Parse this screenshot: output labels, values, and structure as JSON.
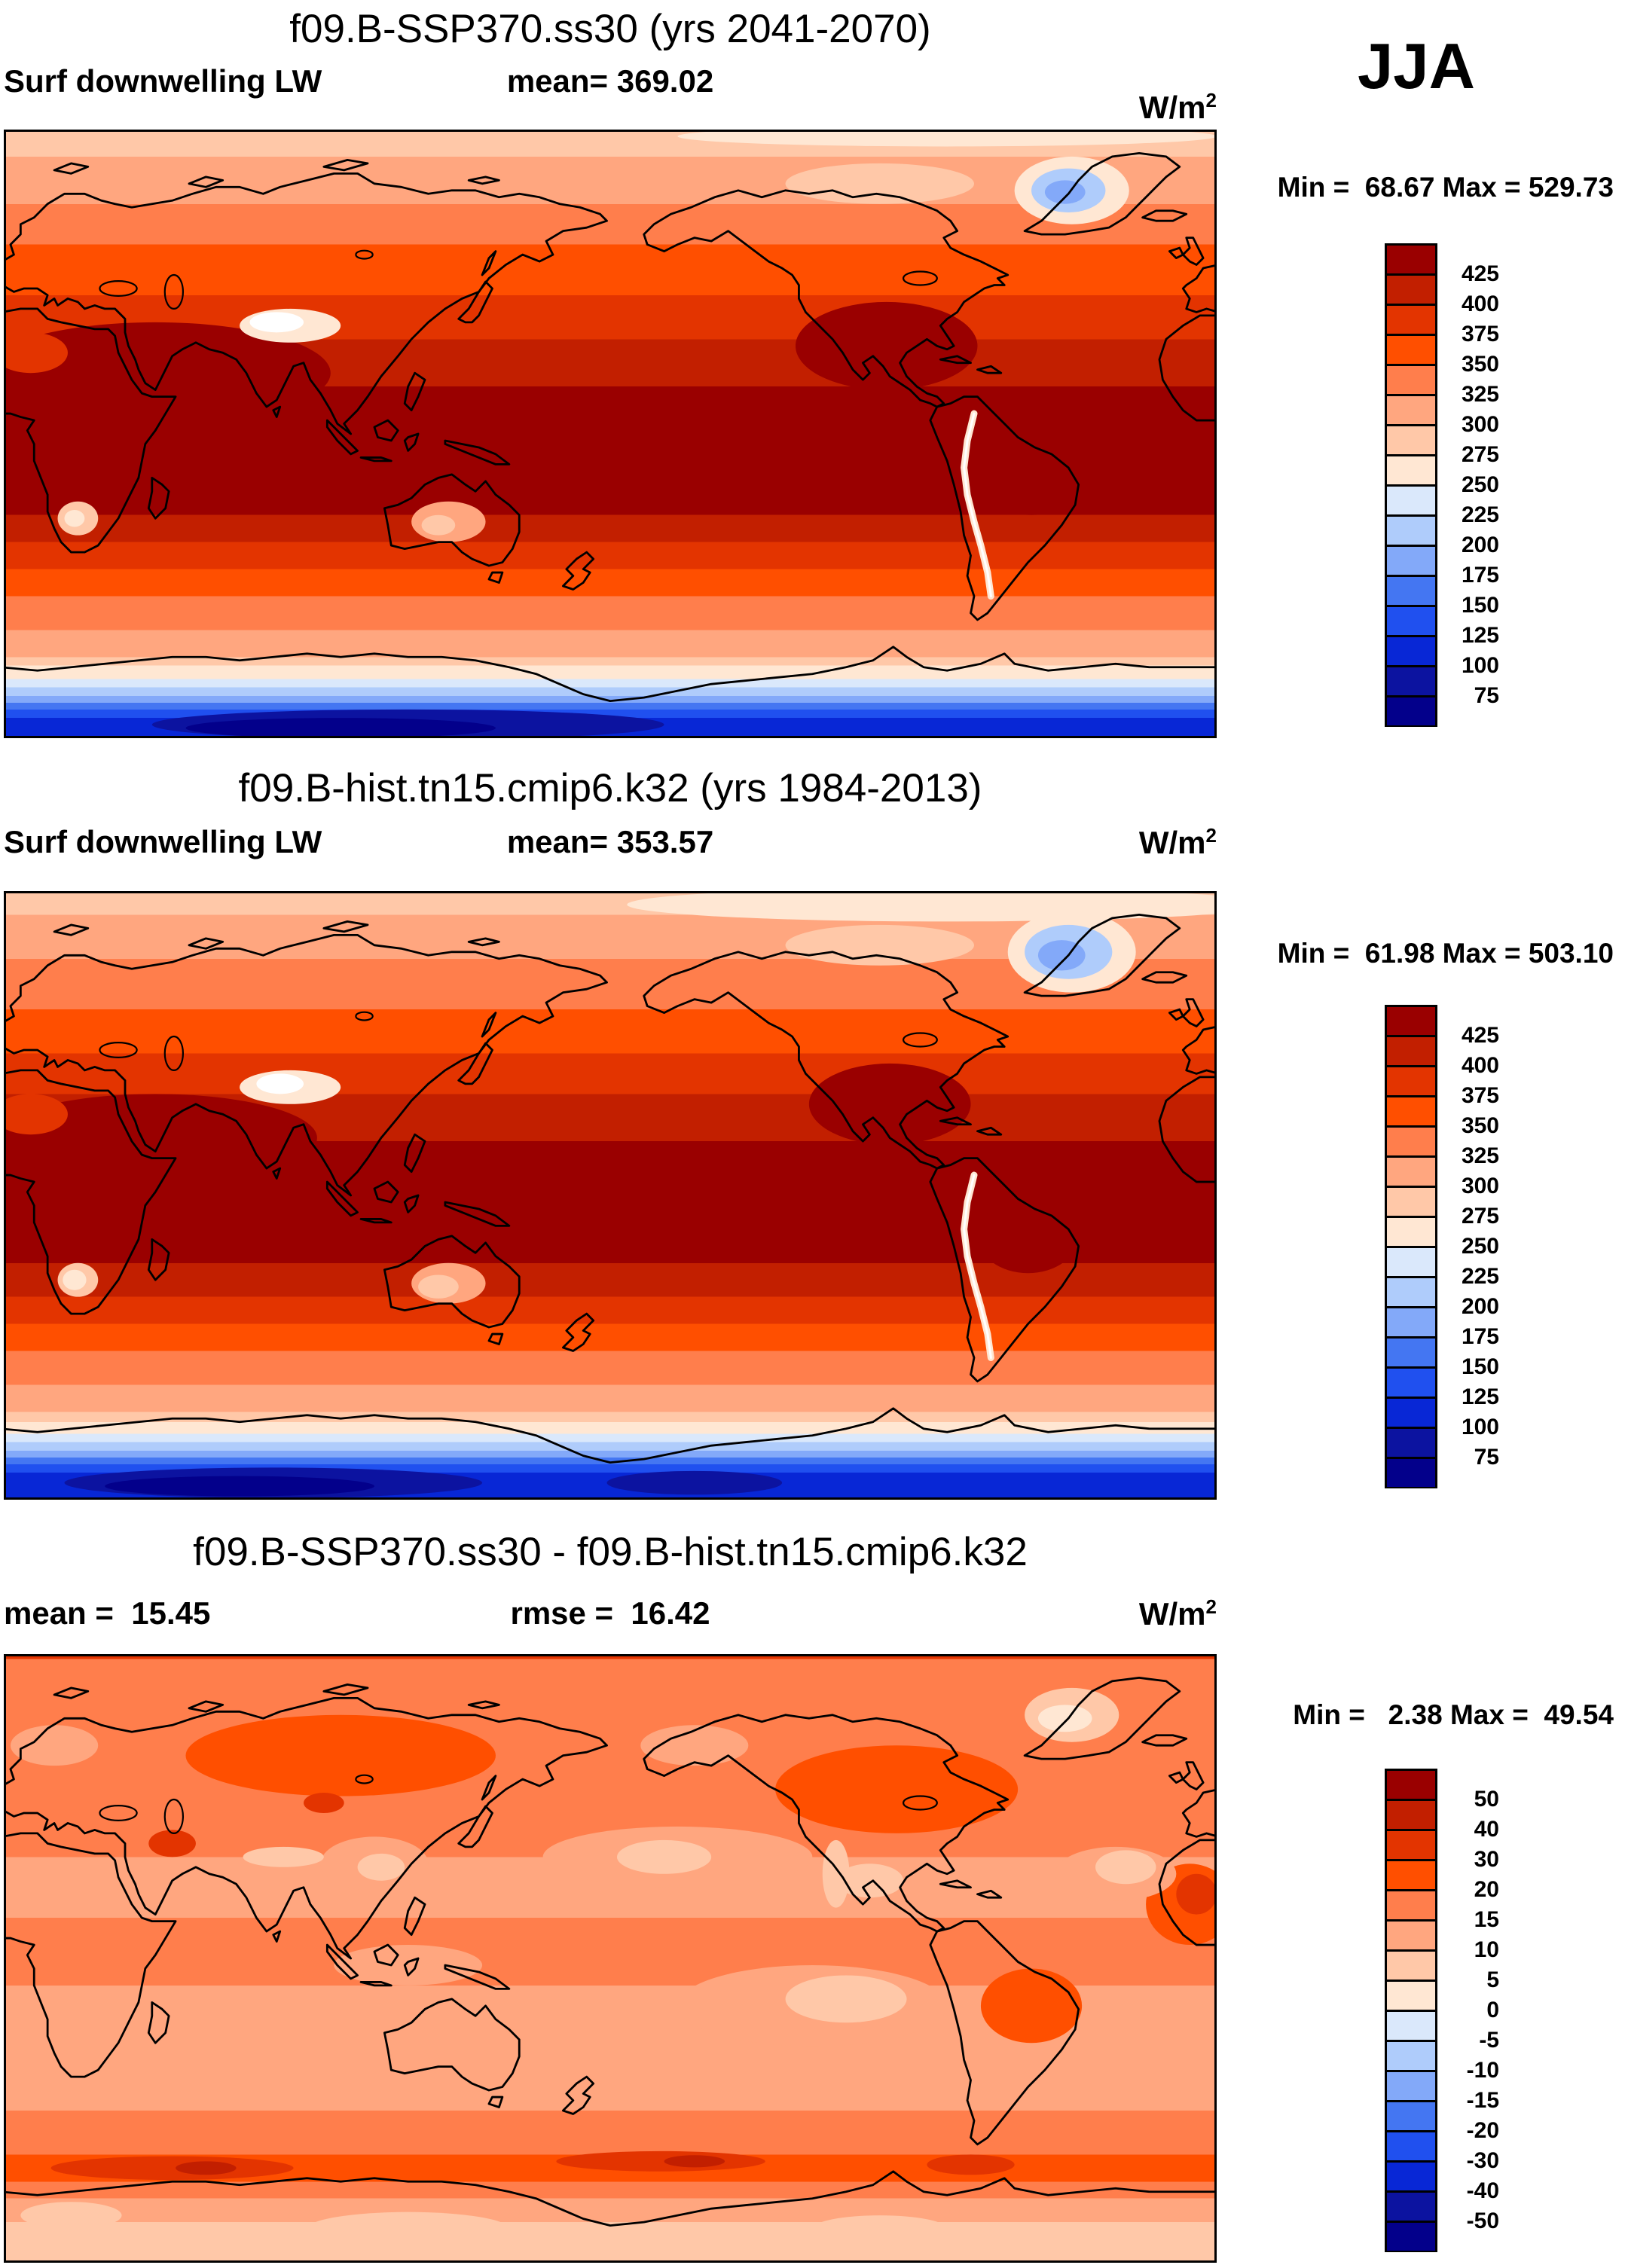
{
  "season": "JJA",
  "unit": {
    "base": "W/m",
    "exp": "2"
  },
  "palette": {
    "outline": "#000000",
    "colors": [
      "#9A0000",
      "#C21F00",
      "#E33400",
      "#FF4F00",
      "#FF7E4C",
      "#FFA67F",
      "#FFC8A8",
      "#FFE7D3",
      "#DAE8FB",
      "#AFCCFB",
      "#83A9F9",
      "#4476F2",
      "#2050EF",
      "#0827D6",
      "#0C13A0",
      "#03008B"
    ]
  },
  "panels": [
    {
      "title": "f09.B-SSP370.ss30 (yrs 2041-2070)",
      "header_left": "Surf downwelling LW",
      "header_center": "mean= 369.02",
      "minmax_text": "Min =  68.67 Max = 529.73",
      "mean": 369.02,
      "min": 68.67,
      "max": 529.73,
      "colorbar_labels": [
        "425",
        "400",
        "375",
        "350",
        "325",
        "300",
        "275",
        "250",
        "225",
        "200",
        "175",
        "150",
        "125",
        "100",
        "75"
      ]
    },
    {
      "title": "f09.B-hist.tn15.cmip6.k32 (yrs 1984-2013)",
      "header_left": "Surf downwelling LW",
      "header_center": "mean= 353.57",
      "minmax_text": "Min =  61.98 Max = 503.10",
      "mean": 353.57,
      "min": 61.98,
      "max": 503.1,
      "colorbar_labels": [
        "425",
        "400",
        "375",
        "350",
        "325",
        "300",
        "275",
        "250",
        "225",
        "200",
        "175",
        "150",
        "125",
        "100",
        "75"
      ]
    },
    {
      "title": "f09.B-SSP370.ss30 - f09.B-hist.tn15.cmip6.k32",
      "header_left": "mean =  15.45",
      "header_center": "rmse =  16.42",
      "minmax_text": "Min =   2.38 Max =  49.54",
      "mean": 15.45,
      "rmse": 16.42,
      "min": 2.38,
      "max": 49.54,
      "colorbar_labels": [
        "50",
        "40",
        "30",
        "20",
        "15",
        "10",
        "5",
        "0",
        "-5",
        "-10",
        "-15",
        "-20",
        "-30",
        "-40",
        "-50"
      ]
    }
  ],
  "chart_data": [
    {
      "type": "heatmap",
      "subtype": "filled-contour global map",
      "title": "f09.B-SSP370.ss30 (yrs 2041-2070)",
      "variable": "Surf downwelling LW",
      "season": "JJA",
      "unit": "W/m2",
      "mean": 369.02,
      "min": 68.67,
      "max": 529.73,
      "contour_levels": [
        75,
        100,
        125,
        150,
        175,
        200,
        225,
        250,
        275,
        300,
        325,
        350,
        375,
        400,
        425
      ],
      "legend_position": "right",
      "projection": "cylindrical equidistant, lon 0-360E (left to right), lat 90N (top) to 90S (bottom)",
      "zonal_bands": [
        [
          90,
          82,
          6
        ],
        [
          82,
          68,
          5
        ],
        [
          68,
          56,
          4
        ],
        [
          56,
          41,
          3
        ],
        [
          41,
          28,
          2
        ],
        [
          28,
          14,
          1
        ],
        [
          14,
          -24,
          0
        ],
        [
          -24,
          -32,
          1
        ],
        [
          -32,
          -40,
          2
        ],
        [
          -40,
          -48,
          3
        ],
        [
          -48,
          -58,
          4
        ],
        [
          -58,
          -66,
          5
        ],
        [
          -66,
          -68.5,
          6
        ],
        [
          -68.5,
          -72.5,
          7
        ],
        [
          -72.5,
          -75,
          8
        ],
        [
          -75,
          -77.5,
          9
        ],
        [
          -77.5,
          -79.5,
          10
        ],
        [
          -79.5,
          -81.5,
          11
        ],
        [
          -81.5,
          -84,
          12
        ],
        [
          -84,
          -90,
          13
        ]
      ]
    },
    {
      "type": "heatmap",
      "subtype": "filled-contour global map",
      "title": "f09.B-hist.tn15.cmip6.k32 (yrs 1984-2013)",
      "variable": "Surf downwelling LW",
      "season": "JJA",
      "unit": "W/m2",
      "mean": 353.57,
      "min": 61.98,
      "max": 503.1,
      "contour_levels": [
        75,
        100,
        125,
        150,
        175,
        200,
        225,
        250,
        275,
        300,
        325,
        350,
        375,
        400,
        425
      ],
      "legend_position": "right",
      "projection": "cylindrical equidistant, lon 0-360E (left to right), lat 90N (top) to 90S (bottom)",
      "zonal_bands": [
        [
          90,
          83,
          6
        ],
        [
          83,
          70,
          5
        ],
        [
          70,
          55,
          4
        ],
        [
          55,
          42,
          3
        ],
        [
          42,
          30,
          2
        ],
        [
          30,
          16,
          1
        ],
        [
          16,
          -20,
          0
        ],
        [
          -20,
          -30,
          1
        ],
        [
          -30,
          -38,
          2
        ],
        [
          -38,
          -46,
          3
        ],
        [
          -46,
          -56,
          4
        ],
        [
          -56,
          -64,
          5
        ],
        [
          -64,
          -67,
          6
        ],
        [
          -67,
          -70.5,
          7
        ],
        [
          -70.5,
          -73,
          8
        ],
        [
          -73,
          -75.5,
          9
        ],
        [
          -75.5,
          -77.5,
          10
        ],
        [
          -77.5,
          -79.5,
          11
        ],
        [
          -79.5,
          -82,
          12
        ],
        [
          -82,
          -90,
          13
        ]
      ]
    },
    {
      "type": "heatmap",
      "subtype": "filled-contour global difference map",
      "title": "f09.B-SSP370.ss30 - f09.B-hist.tn15.cmip6.k32",
      "variable": "Surf downwelling LW",
      "season": "JJA",
      "unit": "W/m2",
      "mean": 15.45,
      "rmse": 16.42,
      "min": 2.38,
      "max": 49.54,
      "contour_levels": [
        -50,
        -40,
        -30,
        -20,
        -15,
        -10,
        -5,
        0,
        5,
        10,
        15,
        20,
        30,
        40,
        50
      ],
      "legend_position": "right",
      "projection": "cylindrical equidistant, lon 0-360E (left to right), lat 90N (top) to 90S (bottom)",
      "zonal_bands": [
        [
          90,
          88.5,
          2
        ],
        [
          88.5,
          62,
          4
        ],
        [
          62,
          30,
          4
        ],
        [
          30,
          12,
          5
        ],
        [
          12,
          -8,
          4
        ],
        [
          -8,
          -45,
          5
        ],
        [
          -45,
          -58,
          4
        ],
        [
          -58,
          -66,
          3
        ],
        [
          -66,
          -71,
          4
        ],
        [
          -71,
          -78,
          5
        ],
        [
          -78,
          -90,
          6
        ]
      ]
    }
  ]
}
